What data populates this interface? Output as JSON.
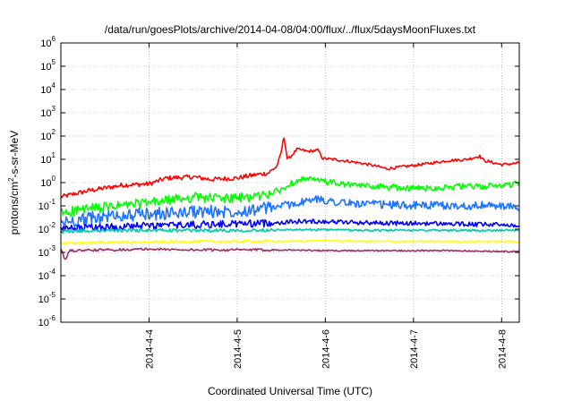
{
  "chart_data": {
    "type": "line",
    "title": "/data/run/goesPlots/archive/2014-04-08/04:00/flux/../flux/5daysMoonFluxes.txt",
    "xlabel": "Coordinated Universal Time (UTC)",
    "ylabel": "protons/cm²-s-sr-MeV",
    "ylabel_parts": {
      "before": "protons/cm",
      "sup": "2",
      "after": "-s-sr-MeV"
    },
    "yscale": "log",
    "ylim": [
      1e-06,
      1000000.0
    ],
    "xlim_days": [
      0,
      5.2
    ],
    "y_ticks": [
      {
        "base": "10",
        "exp": "-6",
        "value": 1e-06
      },
      {
        "base": "10",
        "exp": "-5",
        "value": 1e-05
      },
      {
        "base": "10",
        "exp": "-4",
        "value": 0.0001
      },
      {
        "base": "10",
        "exp": "-3",
        "value": 0.001
      },
      {
        "base": "10",
        "exp": "-2",
        "value": 0.01
      },
      {
        "base": "10",
        "exp": "-1",
        "value": 0.1
      },
      {
        "base": "10",
        "exp": "0",
        "value": 1
      },
      {
        "base": "10",
        "exp": "1",
        "value": 10
      },
      {
        "base": "10",
        "exp": "2",
        "value": 100
      },
      {
        "base": "10",
        "exp": "3",
        "value": 1000
      },
      {
        "base": "10",
        "exp": "4",
        "value": 10000
      },
      {
        "base": "10",
        "exp": "5",
        "value": 100000
      },
      {
        "base": "10",
        "exp": "6",
        "value": 1000000
      }
    ],
    "x_ticks": [
      {
        "label": "2014-4-4",
        "day": 1
      },
      {
        "label": "2014-4-5",
        "day": 2
      },
      {
        "label": "2014-4-6",
        "day": 3
      },
      {
        "label": "2014-4-7",
        "day": 4
      },
      {
        "label": "2014-4-8",
        "day": 5
      }
    ],
    "grid": true,
    "series": [
      {
        "color": "#ff0000",
        "points": [
          [
            0,
            0.25
          ],
          [
            0.1,
            0.3
          ],
          [
            0.3,
            0.45
          ],
          [
            0.5,
            0.6
          ],
          [
            0.7,
            0.8
          ],
          [
            1.0,
            0.9
          ],
          [
            1.2,
            1.6
          ],
          [
            1.5,
            1.8
          ],
          [
            1.7,
            1.4
          ],
          [
            2.0,
            1.6
          ],
          [
            2.2,
            2.2
          ],
          [
            2.35,
            2.6
          ],
          [
            2.45,
            5
          ],
          [
            2.5,
            20
          ],
          [
            2.53,
            100
          ],
          [
            2.57,
            10
          ],
          [
            2.62,
            15
          ],
          [
            2.68,
            28
          ],
          [
            2.8,
            22
          ],
          [
            2.92,
            25
          ],
          [
            2.97,
            11
          ],
          [
            3.1,
            10
          ],
          [
            3.3,
            8
          ],
          [
            3.5,
            6
          ],
          [
            3.7,
            4
          ],
          [
            3.9,
            5
          ],
          [
            4.0,
            5.5
          ],
          [
            4.2,
            7
          ],
          [
            4.4,
            9
          ],
          [
            4.6,
            10
          ],
          [
            4.75,
            14
          ],
          [
            4.8,
            9
          ],
          [
            5.0,
            6
          ],
          [
            5.2,
            7
          ]
        ]
      },
      {
        "color": "#00ff00",
        "points": [
          [
            0,
            0.05
          ],
          [
            0.2,
            0.07
          ],
          [
            0.5,
            0.09
          ],
          [
            0.8,
            0.12
          ],
          [
            1.0,
            0.14
          ],
          [
            1.3,
            0.2
          ],
          [
            1.5,
            0.25
          ],
          [
            1.8,
            0.22
          ],
          [
            2.0,
            0.22
          ],
          [
            2.3,
            0.3
          ],
          [
            2.5,
            0.5
          ],
          [
            2.7,
            1.5
          ],
          [
            2.9,
            1.3
          ],
          [
            3.1,
            1.0
          ],
          [
            3.3,
            0.8
          ],
          [
            3.6,
            0.7
          ],
          [
            3.9,
            0.6
          ],
          [
            4.2,
            0.6
          ],
          [
            4.5,
            0.7
          ],
          [
            4.8,
            0.7
          ],
          [
            5.0,
            0.8
          ],
          [
            5.2,
            0.9
          ]
        ]
      },
      {
        "color": "#1e73ff",
        "points": [
          [
            0,
            0.02
          ],
          [
            0.3,
            0.03
          ],
          [
            0.6,
            0.04
          ],
          [
            0.9,
            0.045
          ],
          [
            1.2,
            0.05
          ],
          [
            1.5,
            0.06
          ],
          [
            1.8,
            0.06
          ],
          [
            2.1,
            0.07
          ],
          [
            2.4,
            0.09
          ],
          [
            2.7,
            0.14
          ],
          [
            2.9,
            0.2
          ],
          [
            3.1,
            0.16
          ],
          [
            3.3,
            0.13
          ],
          [
            3.6,
            0.12
          ],
          [
            3.9,
            0.11
          ],
          [
            4.2,
            0.11
          ],
          [
            4.5,
            0.1
          ],
          [
            4.8,
            0.11
          ],
          [
            5.0,
            0.1
          ],
          [
            5.2,
            0.09
          ]
        ]
      },
      {
        "color": "#0000ff",
        "points": [
          [
            0,
            0.01
          ],
          [
            0.3,
            0.012
          ],
          [
            0.6,
            0.013
          ],
          [
            0.9,
            0.014
          ],
          [
            1.2,
            0.015
          ],
          [
            1.5,
            0.016
          ],
          [
            1.8,
            0.017
          ],
          [
            2.1,
            0.018
          ],
          [
            2.4,
            0.019
          ],
          [
            2.7,
            0.022
          ],
          [
            3.0,
            0.022
          ],
          [
            3.3,
            0.02
          ],
          [
            3.6,
            0.019
          ],
          [
            3.9,
            0.018
          ],
          [
            4.2,
            0.018
          ],
          [
            4.5,
            0.017
          ],
          [
            4.8,
            0.016
          ],
          [
            5.0,
            0.016
          ],
          [
            5.2,
            0.015
          ]
        ]
      },
      {
        "color": "#00ccaa",
        "points": [
          [
            0,
            0.008
          ],
          [
            0.5,
            0.009
          ],
          [
            1.0,
            0.009
          ],
          [
            1.5,
            0.009
          ],
          [
            2.0,
            0.009
          ],
          [
            2.5,
            0.0095
          ],
          [
            3.0,
            0.0095
          ],
          [
            3.5,
            0.009
          ],
          [
            4.0,
            0.009
          ],
          [
            4.5,
            0.009
          ],
          [
            5.0,
            0.009
          ],
          [
            5.2,
            0.009
          ]
        ]
      },
      {
        "color": "#ffff00",
        "points": [
          [
            0,
            0.0025
          ],
          [
            0.5,
            0.0028
          ],
          [
            1.0,
            0.0028
          ],
          [
            1.5,
            0.003
          ],
          [
            2.0,
            0.003
          ],
          [
            2.5,
            0.003
          ],
          [
            3.0,
            0.0032
          ],
          [
            3.5,
            0.003
          ],
          [
            4.0,
            0.003
          ],
          [
            4.5,
            0.003
          ],
          [
            5.0,
            0.003
          ],
          [
            5.2,
            0.003
          ]
        ]
      },
      {
        "color": "#993366",
        "points": [
          [
            0,
            0.0013
          ],
          [
            0.05,
            0.0005
          ],
          [
            0.1,
            0.0012
          ],
          [
            0.5,
            0.0013
          ],
          [
            1.0,
            0.0014
          ],
          [
            1.5,
            0.0013
          ],
          [
            2.0,
            0.0013
          ],
          [
            2.5,
            0.0013
          ],
          [
            3.0,
            0.0012
          ],
          [
            3.5,
            0.0012
          ],
          [
            4.0,
            0.0012
          ],
          [
            4.5,
            0.0012
          ],
          [
            5.0,
            0.0011
          ],
          [
            5.2,
            0.0011
          ]
        ]
      }
    ]
  }
}
